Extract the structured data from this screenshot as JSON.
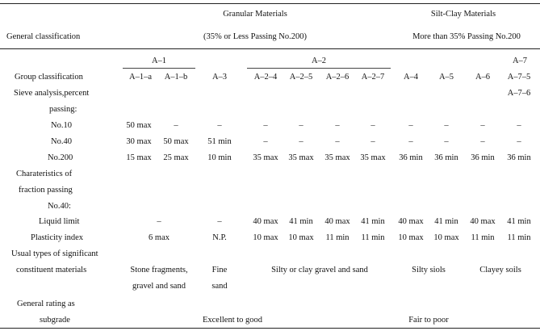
{
  "header": {
    "general_classification": "General classification",
    "granular": "Granular Materials",
    "granular_sub": "(35% or Less Passing No.200)",
    "siltclay": "Silt-Clay Materials",
    "siltclay_sub": "More than 35% Passing No.200"
  },
  "groups": {
    "a1": "A–1",
    "a2": "A–2",
    "a7": "A–7"
  },
  "labels": {
    "group_classification": "Group classification",
    "sieve1": "Sieve analysis,percent",
    "sieve2": "passing:",
    "no10": "No.10",
    "no40": "No.40",
    "no200": "No.200",
    "char1": "Charateristics of",
    "char2": "fraction passing",
    "char3": "No.40:",
    "ll": "Liquid limit",
    "pi": "Plasticity index",
    "usual1": "Usual types of significant",
    "usual2": "constituent materials",
    "rating1": "General rating as",
    "rating2": "subgrade"
  },
  "columns": [
    "A–1–a",
    "A–1–b",
    "A–3",
    "A–2–4",
    "A–2–5",
    "A–2–6",
    "A–2–7",
    "A–4",
    "A–5",
    "A–6",
    "A–7–5"
  ],
  "col_extra": "A–7–6",
  "rows": {
    "no10": [
      "50 max",
      "–",
      "–",
      "–",
      "–",
      "–",
      "–",
      "–",
      "–",
      "–",
      "–"
    ],
    "no40": [
      "30 max",
      "50 max",
      "51 min",
      "–",
      "–",
      "–",
      "–",
      "–",
      "–",
      "–",
      "–"
    ],
    "no200": [
      "15 max",
      "25 max",
      "10 min",
      "35 max",
      "35 max",
      "35 max",
      "35 max",
      "36 min",
      "36 min",
      "36 min",
      "36 min"
    ],
    "ll": [
      "–",
      "–",
      "40 max",
      "41 min",
      "40 max",
      "41 min",
      "40 max",
      "41 min",
      "40 max",
      "41 min"
    ],
    "pi": [
      "6 max",
      "N.P.",
      "10 max",
      "10 max",
      "11 min",
      "11 min",
      "10 max",
      "10 max",
      "11 min",
      "11 min"
    ]
  },
  "usual": {
    "a1": [
      "Stone fragments,",
      "gravel and sand"
    ],
    "a3": [
      "Fine",
      "sand"
    ],
    "a2": "Silty or clay gravel and sand",
    "silty": "Silty siols",
    "clayey": "Clayey soils"
  },
  "rating": {
    "good": "Excellent to good",
    "poor": "Fair to poor"
  }
}
